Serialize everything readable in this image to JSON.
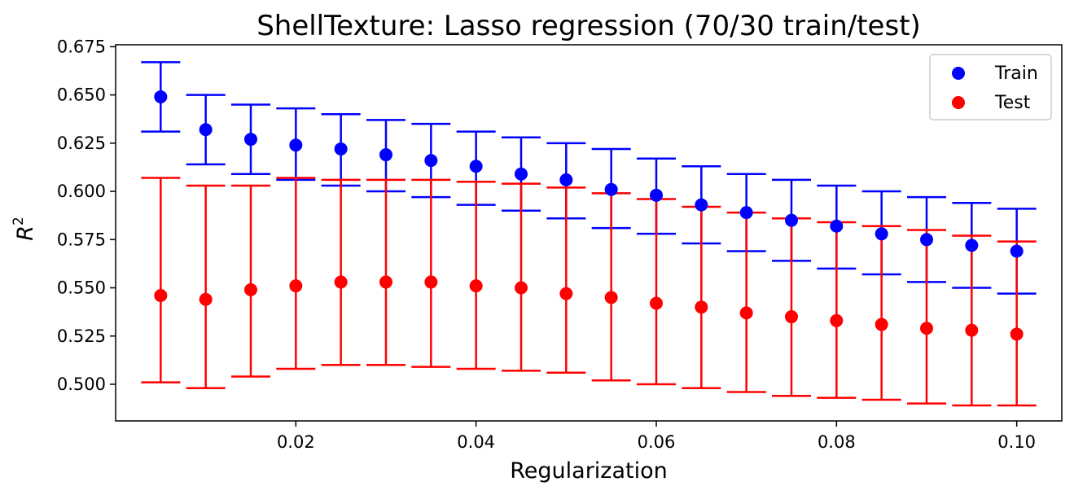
{
  "chart_data": {
    "type": "scatter",
    "title": "ShellTexture: Lasso regression (70/30 train/test)",
    "xlabel": "Regularization",
    "ylabel_base": "R",
    "ylabel_sup": "2",
    "xlim": [
      0.0,
      0.105
    ],
    "ylim": [
      0.481,
      0.676
    ],
    "xticks": [
      {
        "value": 0.02,
        "label": "0.02"
      },
      {
        "value": 0.04,
        "label": "0.04"
      },
      {
        "value": 0.06,
        "label": "0.06"
      },
      {
        "value": 0.08,
        "label": "0.08"
      },
      {
        "value": 0.1,
        "label": "0.10"
      }
    ],
    "yticks": [
      {
        "value": 0.5,
        "label": "0.500"
      },
      {
        "value": 0.525,
        "label": "0.525"
      },
      {
        "value": 0.55,
        "label": "0.550"
      },
      {
        "value": 0.575,
        "label": "0.575"
      },
      {
        "value": 0.6,
        "label": "0.600"
      },
      {
        "value": 0.625,
        "label": "0.625"
      },
      {
        "value": 0.65,
        "label": "0.650"
      },
      {
        "value": 0.675,
        "label": "0.675"
      }
    ],
    "grid": false,
    "legend_position": "top-right",
    "x": [
      0.005,
      0.01,
      0.015,
      0.02,
      0.025,
      0.03,
      0.035,
      0.04,
      0.045,
      0.05,
      0.055,
      0.06,
      0.065,
      0.07,
      0.075,
      0.08,
      0.085,
      0.09,
      0.095,
      0.1
    ],
    "series": [
      {
        "name": "Train",
        "color": "#0000ff",
        "values": [
          0.649,
          0.632,
          0.627,
          0.624,
          0.622,
          0.619,
          0.616,
          0.613,
          0.609,
          0.606,
          0.601,
          0.598,
          0.593,
          0.589,
          0.585,
          0.582,
          0.578,
          0.575,
          0.572,
          0.569
        ],
        "err_low": [
          0.631,
          0.614,
          0.609,
          0.606,
          0.603,
          0.6,
          0.597,
          0.593,
          0.59,
          0.586,
          0.581,
          0.578,
          0.573,
          0.569,
          0.564,
          0.56,
          0.557,
          0.553,
          0.55,
          0.547
        ],
        "err_high": [
          0.667,
          0.65,
          0.645,
          0.643,
          0.64,
          0.637,
          0.635,
          0.631,
          0.628,
          0.625,
          0.622,
          0.617,
          0.613,
          0.609,
          0.606,
          0.603,
          0.6,
          0.597,
          0.594,
          0.591
        ]
      },
      {
        "name": "Test",
        "color": "#ff0000",
        "values": [
          0.546,
          0.544,
          0.549,
          0.551,
          0.553,
          0.553,
          0.553,
          0.551,
          0.55,
          0.547,
          0.545,
          0.542,
          0.54,
          0.537,
          0.535,
          0.533,
          0.531,
          0.529,
          0.528,
          0.526
        ],
        "err_low": [
          0.501,
          0.498,
          0.504,
          0.508,
          0.51,
          0.51,
          0.509,
          0.508,
          0.507,
          0.506,
          0.502,
          0.5,
          0.498,
          0.496,
          0.494,
          0.493,
          0.492,
          0.49,
          0.489,
          0.489
        ],
        "err_high": [
          0.607,
          0.603,
          0.603,
          0.607,
          0.606,
          0.606,
          0.606,
          0.605,
          0.604,
          0.602,
          0.599,
          0.596,
          0.592,
          0.589,
          0.586,
          0.584,
          0.582,
          0.58,
          0.577,
          0.574
        ]
      }
    ]
  }
}
